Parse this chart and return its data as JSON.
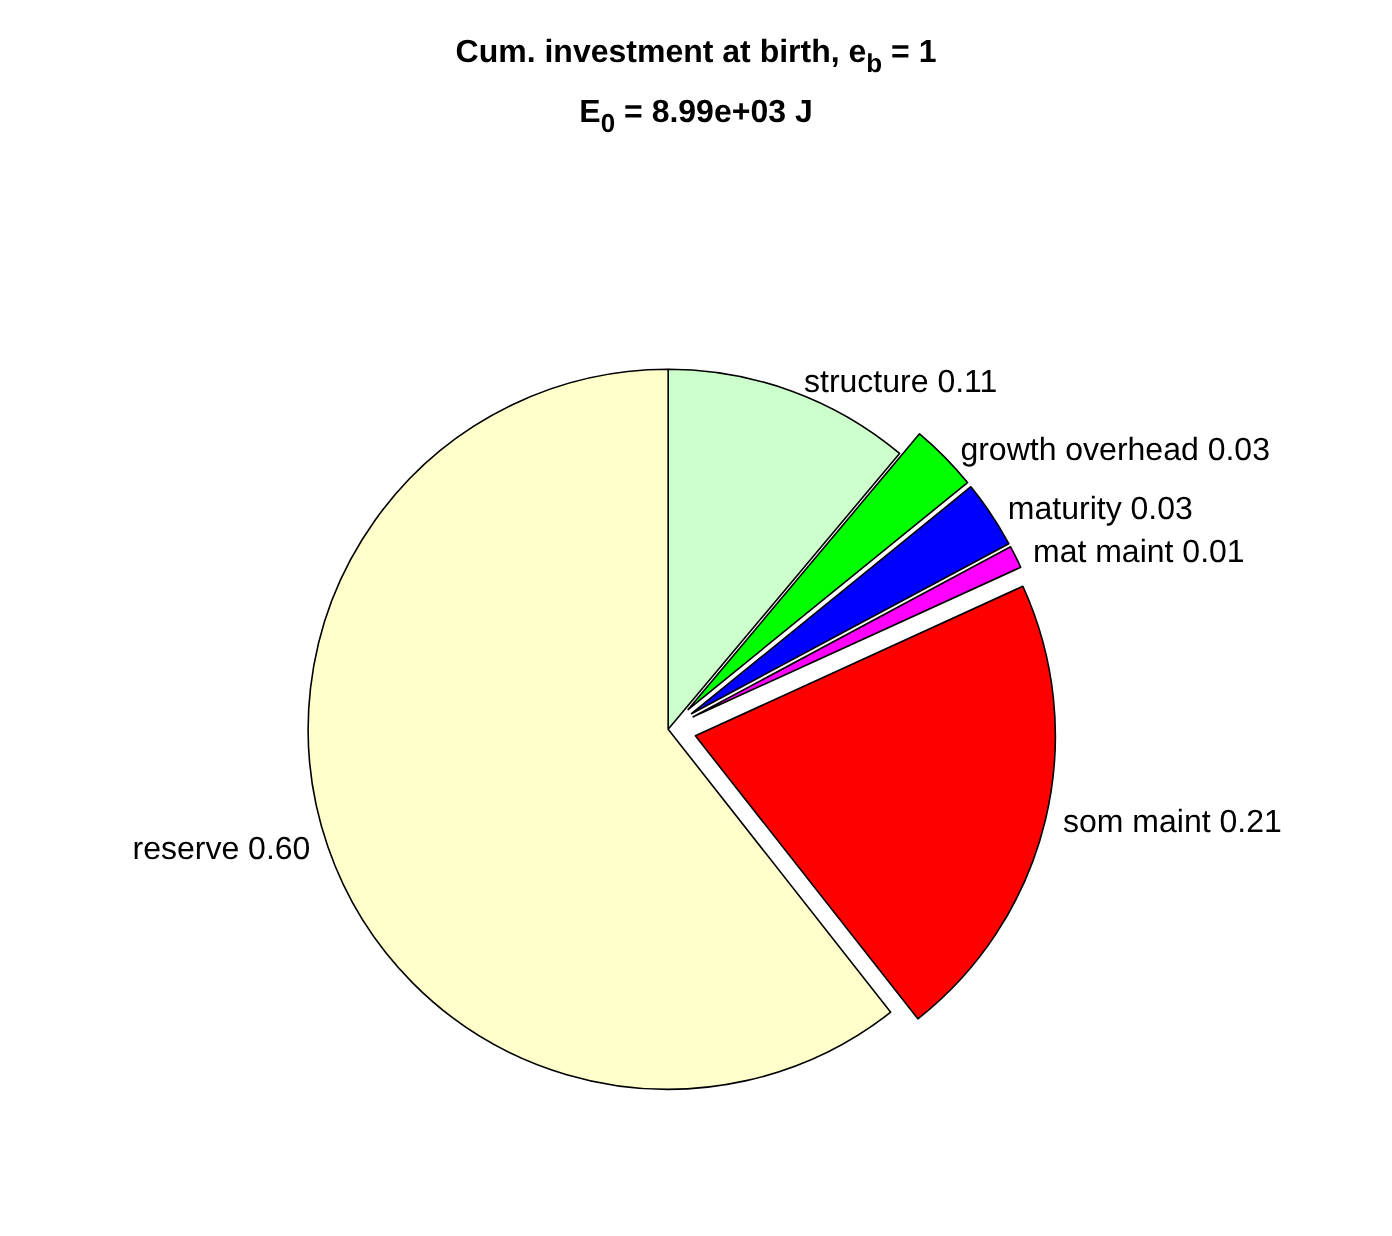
{
  "chart_data": {
    "type": "pie",
    "title": "Cum. investment at birth, e$_{b}$ = 1",
    "subtitle": "E$_{0}$ = 8.99e+03 J",
    "categories": [
      "structure",
      "growth overhead",
      "maturity",
      "mat maint",
      "som maint",
      "reserve"
    ],
    "values": [
      0.11,
      0.03,
      0.03,
      0.01,
      0.21,
      0.6
    ],
    "value_labels": [
      "0.11",
      "0.03",
      "0.03",
      "0.01",
      "0.21",
      "0.60"
    ],
    "colors": [
      "#ccffcc",
      "#00ff00",
      "#0000ff",
      "#ff00ff",
      "#ff0000",
      "#ffffcc"
    ],
    "legend": false
  }
}
